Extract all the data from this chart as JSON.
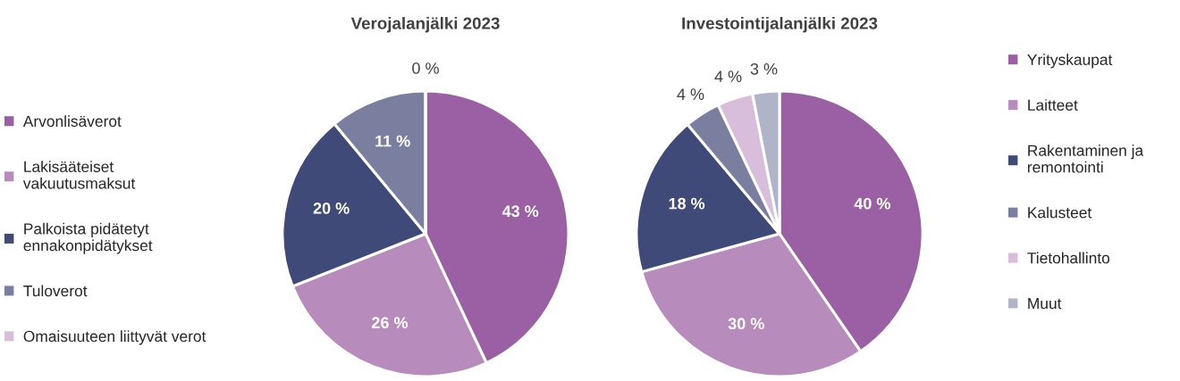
{
  "chart_data": [
    {
      "type": "pie",
      "title": "Verojalanjälki 2023",
      "categories": [
        "Arvonlisäverot",
        "Lakisääteiset vakuutusmaksut",
        "Palkoista pidätetyt ennakonpidätykset",
        "Tuloverot",
        "Omaisuuteen liittyvät verot"
      ],
      "values": [
        43,
        26,
        20,
        11,
        0
      ],
      "colors": [
        "#9b5fa3",
        "#b88bbd",
        "#3f4a78",
        "#7a7f9f",
        "#d8bedb"
      ],
      "value_labels": [
        "43 %",
        "26 %",
        "20 %",
        "11 %",
        "0 %"
      ],
      "legend": "left"
    },
    {
      "type": "pie",
      "title": "Investointijalanjälki 2023",
      "categories": [
        "Yrityskaupat",
        "Laitteet",
        "Rakentaminen ja remontointi",
        "Kalusteet",
        "Tietohallinto",
        "Muut"
      ],
      "values": [
        40,
        30,
        18,
        4,
        4,
        3
      ],
      "colors": [
        "#9b5fa3",
        "#b88bbd",
        "#3f4a78",
        "#7a7f9f",
        "#d8bedb",
        "#b0b4c8"
      ],
      "value_labels": [
        "40 %",
        "30 %",
        "18 %",
        "4 %",
        "4 %",
        "3 %"
      ],
      "legend": "right"
    }
  ]
}
